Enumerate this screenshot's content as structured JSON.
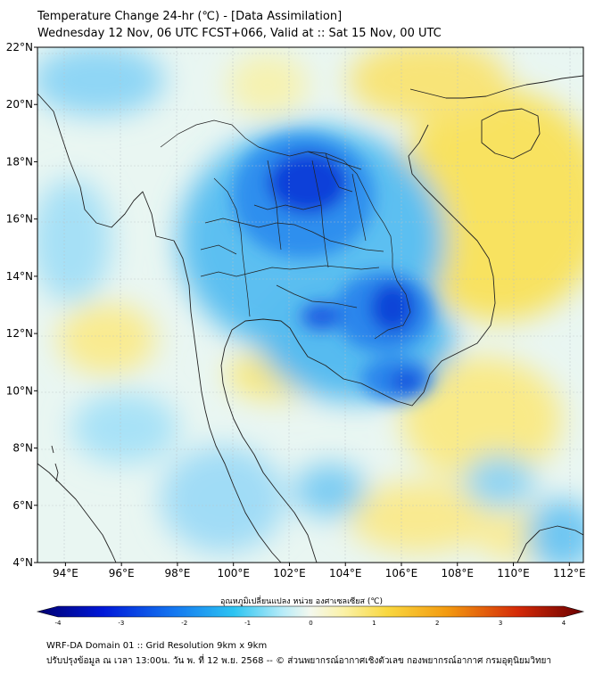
{
  "header": {
    "title_line1": "Temperature Change 24-hr (℃) - [Data Assimilation]",
    "title_line2": "Wednesday 12 Nov, 06 UTC FCST+066, Valid at :: Sat 15 Nov, 00 UTC"
  },
  "map": {
    "lat_ticks": [
      "22°N",
      "20°N",
      "18°N",
      "16°N",
      "14°N",
      "12°N",
      "10°N",
      "8°N",
      "6°N",
      "4°N"
    ],
    "lon_ticks": [
      "94°E",
      "96°E",
      "98°E",
      "100°E",
      "102°E",
      "104°E",
      "106°E",
      "108°E",
      "110°E",
      "112°E"
    ],
    "lat_range": [
      4,
      22
    ],
    "lon_range": [
      93,
      112.5
    ],
    "colors": {
      "strong_cooling": "#0a2bd6",
      "cooling": "#3aa0f0",
      "light_cooling": "#9fdcf7",
      "neutral": "#f4f8f0",
      "warming": "#f7e46a",
      "border_line": "#222222"
    }
  },
  "colorbar": {
    "title": "อุณหภูมิเปลี่ยนแปลง หน่วย องศาเซลเซียส (℃)",
    "ticks": [
      "-4",
      "-3",
      "-2",
      "-1",
      "0",
      "1",
      "2",
      "3",
      "4"
    ],
    "range": [
      -4,
      4
    ]
  },
  "footer": {
    "line1": "WRF-DA Domain 01 :: Grid Resolution 9km x 9km",
    "line2": "ปรับปรุงข้อมูล ณ เวลา 13:00น. วัน พ. ที่ 12 พ.ย. 2568 -- © ส่วนพยากรณ์อากาศเชิงตัวเลข กองพยากรณ์อากาศ กรมอุตุนิยมวิทยา"
  }
}
